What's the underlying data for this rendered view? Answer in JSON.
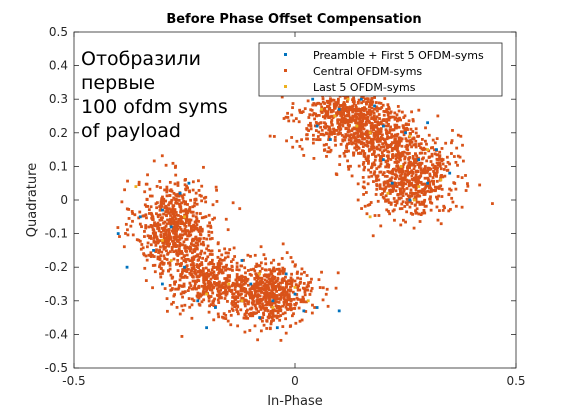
{
  "chart_data": {
    "type": "scatter",
    "title": "Before Phase Offset Compensation",
    "xlabel": "In-Phase",
    "ylabel": "Quadrature",
    "xlim": [
      -0.5,
      0.5
    ],
    "ylim": [
      -0.5,
      0.5
    ],
    "xticks": [
      -0.5,
      0,
      0.5
    ],
    "xtick_labels": [
      "-0.5",
      "0",
      "0.5"
    ],
    "yticks": [
      0.5,
      0.4,
      0.3,
      0.2,
      0.1,
      0,
      -0.1,
      -0.2,
      -0.3,
      -0.4,
      -0.5
    ],
    "ytick_labels": [
      "0.5",
      "0.4",
      "0.3",
      "0.2",
      "0.1",
      "0",
      "-0.1",
      "-0.2",
      "-0.3",
      "-0.4",
      "-0.5"
    ],
    "grid": false,
    "legend_position": "top-right",
    "annotation": [
      "Отобразили",
      "первые",
      "100 ofdm syms",
      "of payload"
    ],
    "series": [
      {
        "name": "Preamble + First 5 OFDM-syms",
        "color": "#0072BD",
        "points": [
          [
            -0.3,
            -0.25
          ],
          [
            -0.25,
            -0.2
          ],
          [
            -0.32,
            -0.15
          ],
          [
            -0.28,
            -0.08
          ],
          [
            -0.22,
            -0.3
          ],
          [
            -0.18,
            -0.32
          ],
          [
            -0.35,
            -0.05
          ],
          [
            -0.3,
            -0.03
          ],
          [
            -0.26,
            0.02
          ],
          [
            -0.38,
            -0.2
          ],
          [
            -0.1,
            -0.25
          ],
          [
            -0.05,
            -0.3
          ],
          [
            0.0,
            -0.28
          ],
          [
            0.02,
            -0.33
          ],
          [
            -0.08,
            -0.35
          ],
          [
            0.05,
            -0.32
          ],
          [
            -0.02,
            -0.22
          ],
          [
            0.1,
            -0.33
          ],
          [
            -0.12,
            -0.18
          ],
          [
            -0.04,
            -0.38
          ],
          [
            0.05,
            0.22
          ],
          [
            0.1,
            0.27
          ],
          [
            0.15,
            0.3
          ],
          [
            0.2,
            0.22
          ],
          [
            0.08,
            0.18
          ],
          [
            0.12,
            0.32
          ],
          [
            0.25,
            0.2
          ],
          [
            0.28,
            0.12
          ],
          [
            0.3,
            0.05
          ],
          [
            0.22,
            0.05
          ],
          [
            0.26,
            0.0
          ],
          [
            0.32,
            0.15
          ],
          [
            0.35,
            0.08
          ],
          [
            0.2,
            0.12
          ],
          [
            0.18,
            0.28
          ],
          [
            0.04,
            0.3
          ],
          [
            -0.2,
            -0.38
          ],
          [
            -0.4,
            -0.1
          ],
          [
            -0.24,
            0.05
          ],
          [
            0.3,
            0.23
          ]
        ]
      },
      {
        "name": "Central OFDM-syms",
        "color": "#D95319",
        "clusters": [
          {
            "center": [
              -0.27,
              -0.08
            ],
            "spread": [
              0.045,
              0.07
            ],
            "count": 700
          },
          {
            "center": [
              -0.19,
              -0.24
            ],
            "spread": [
              0.045,
              0.04
            ],
            "count": 380
          },
          {
            "center": [
              -0.06,
              -0.28
            ],
            "spread": [
              0.05,
              0.045
            ],
            "count": 650
          },
          {
            "center": [
              0.12,
              0.24
            ],
            "spread": [
              0.055,
              0.05
            ],
            "count": 650
          },
          {
            "center": [
              0.26,
              0.07
            ],
            "spread": [
              0.05,
              0.06
            ],
            "count": 650
          },
          {
            "center": [
              0.2,
              0.18
            ],
            "spread": [
              0.04,
              0.04
            ],
            "count": 260
          }
        ]
      },
      {
        "name": "Last 5 OFDM-syms",
        "color": "#EDB120",
        "points": [
          [
            -0.36,
            0.04
          ],
          [
            -0.3,
            -0.12
          ],
          [
            -0.25,
            -0.05
          ],
          [
            -0.2,
            -0.28
          ],
          [
            -0.15,
            -0.25
          ],
          [
            -0.08,
            -0.22
          ],
          [
            -0.05,
            -0.32
          ],
          [
            0.0,
            -0.26
          ],
          [
            0.03,
            -0.3
          ],
          [
            0.09,
            0.25
          ],
          [
            0.14,
            0.22
          ],
          [
            0.12,
            0.3
          ],
          [
            0.17,
            0.2
          ],
          [
            0.24,
            0.1
          ],
          [
            0.28,
            0.04
          ],
          [
            0.21,
            0.02
          ],
          [
            0.3,
            0.15
          ],
          [
            0.33,
            0.06
          ],
          [
            0.17,
            -0.05
          ],
          [
            0.26,
            0.19
          ],
          [
            -0.28,
            -0.18
          ],
          [
            -0.12,
            -0.3
          ],
          [
            0.06,
            0.27
          ],
          [
            0.27,
            0.0
          ]
        ]
      }
    ]
  }
}
